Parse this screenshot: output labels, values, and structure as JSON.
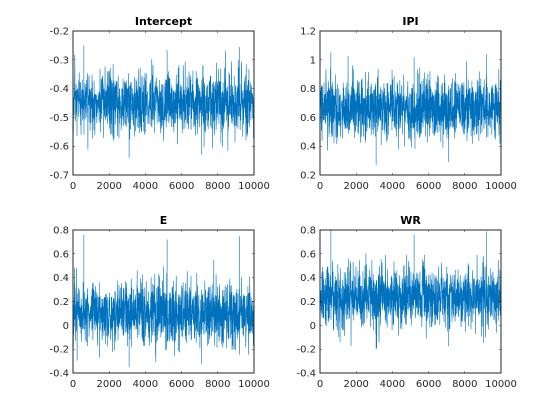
{
  "chart_data": [
    {
      "type": "line",
      "title": "Intercept",
      "color": "#0072BD",
      "xlim": [
        0,
        10000
      ],
      "ylim": [
        -0.7,
        -0.2
      ],
      "xticks": [
        0,
        2000,
        4000,
        6000,
        8000,
        10000
      ],
      "yticks": [
        -0.7,
        -0.6,
        -0.5,
        -0.4,
        -0.3,
        -0.2
      ],
      "ytick_labels": [
        "-0.7",
        "-0.6",
        "-0.5",
        "-0.4",
        "-0.3",
        "-0.2"
      ],
      "n_samples": 10000,
      "trace_summary": {
        "center": -0.45,
        "typical_low": -0.56,
        "typical_high": -0.33,
        "min": -0.64,
        "max": -0.25
      }
    },
    {
      "type": "line",
      "title": "IPI",
      "color": "#0072BD",
      "xlim": [
        0,
        10000
      ],
      "ylim": [
        0.2,
        1.2
      ],
      "xticks": [
        0,
        2000,
        4000,
        6000,
        8000,
        10000
      ],
      "yticks": [
        0.2,
        0.4,
        0.6,
        0.8,
        1.0,
        1.2
      ],
      "ytick_labels": [
        "0.2",
        "0.4",
        "0.6",
        "0.8",
        "1",
        "1.2"
      ],
      "n_samples": 10000,
      "trace_summary": {
        "center": 0.66,
        "typical_low": 0.44,
        "typical_high": 0.88,
        "min": 0.27,
        "max": 1.05
      }
    },
    {
      "type": "line",
      "title": "E",
      "color": "#0072BD",
      "xlim": [
        0,
        10000
      ],
      "ylim": [
        -0.4,
        0.8
      ],
      "xticks": [
        0,
        2000,
        4000,
        6000,
        8000,
        10000
      ],
      "yticks": [
        -0.4,
        -0.2,
        0,
        0.2,
        0.4,
        0.6,
        0.8
      ],
      "ytick_labels": [
        "-0.4",
        "-0.2",
        "0",
        "0.2",
        "0.4",
        "0.6",
        "0.8"
      ],
      "n_samples": 10000,
      "trace_summary": {
        "center": 0.1,
        "typical_low": -0.17,
        "typical_high": 0.38,
        "min": -0.35,
        "max": 0.76
      }
    },
    {
      "type": "line",
      "title": "WR",
      "color": "#0072BD",
      "xlim": [
        0,
        10000
      ],
      "ylim": [
        -0.4,
        0.8
      ],
      "xticks": [
        0,
        2000,
        4000,
        6000,
        8000,
        10000
      ],
      "yticks": [
        -0.4,
        -0.2,
        0,
        0.2,
        0.4,
        0.6,
        0.8
      ],
      "ytick_labels": [
        "-0.4",
        "-0.2",
        "0",
        "0.2",
        "0.4",
        "0.6",
        "0.8"
      ],
      "n_samples": 10000,
      "trace_summary": {
        "center": 0.24,
        "typical_low": -0.02,
        "typical_high": 0.52,
        "min": -0.2,
        "max": 0.8
      }
    }
  ]
}
